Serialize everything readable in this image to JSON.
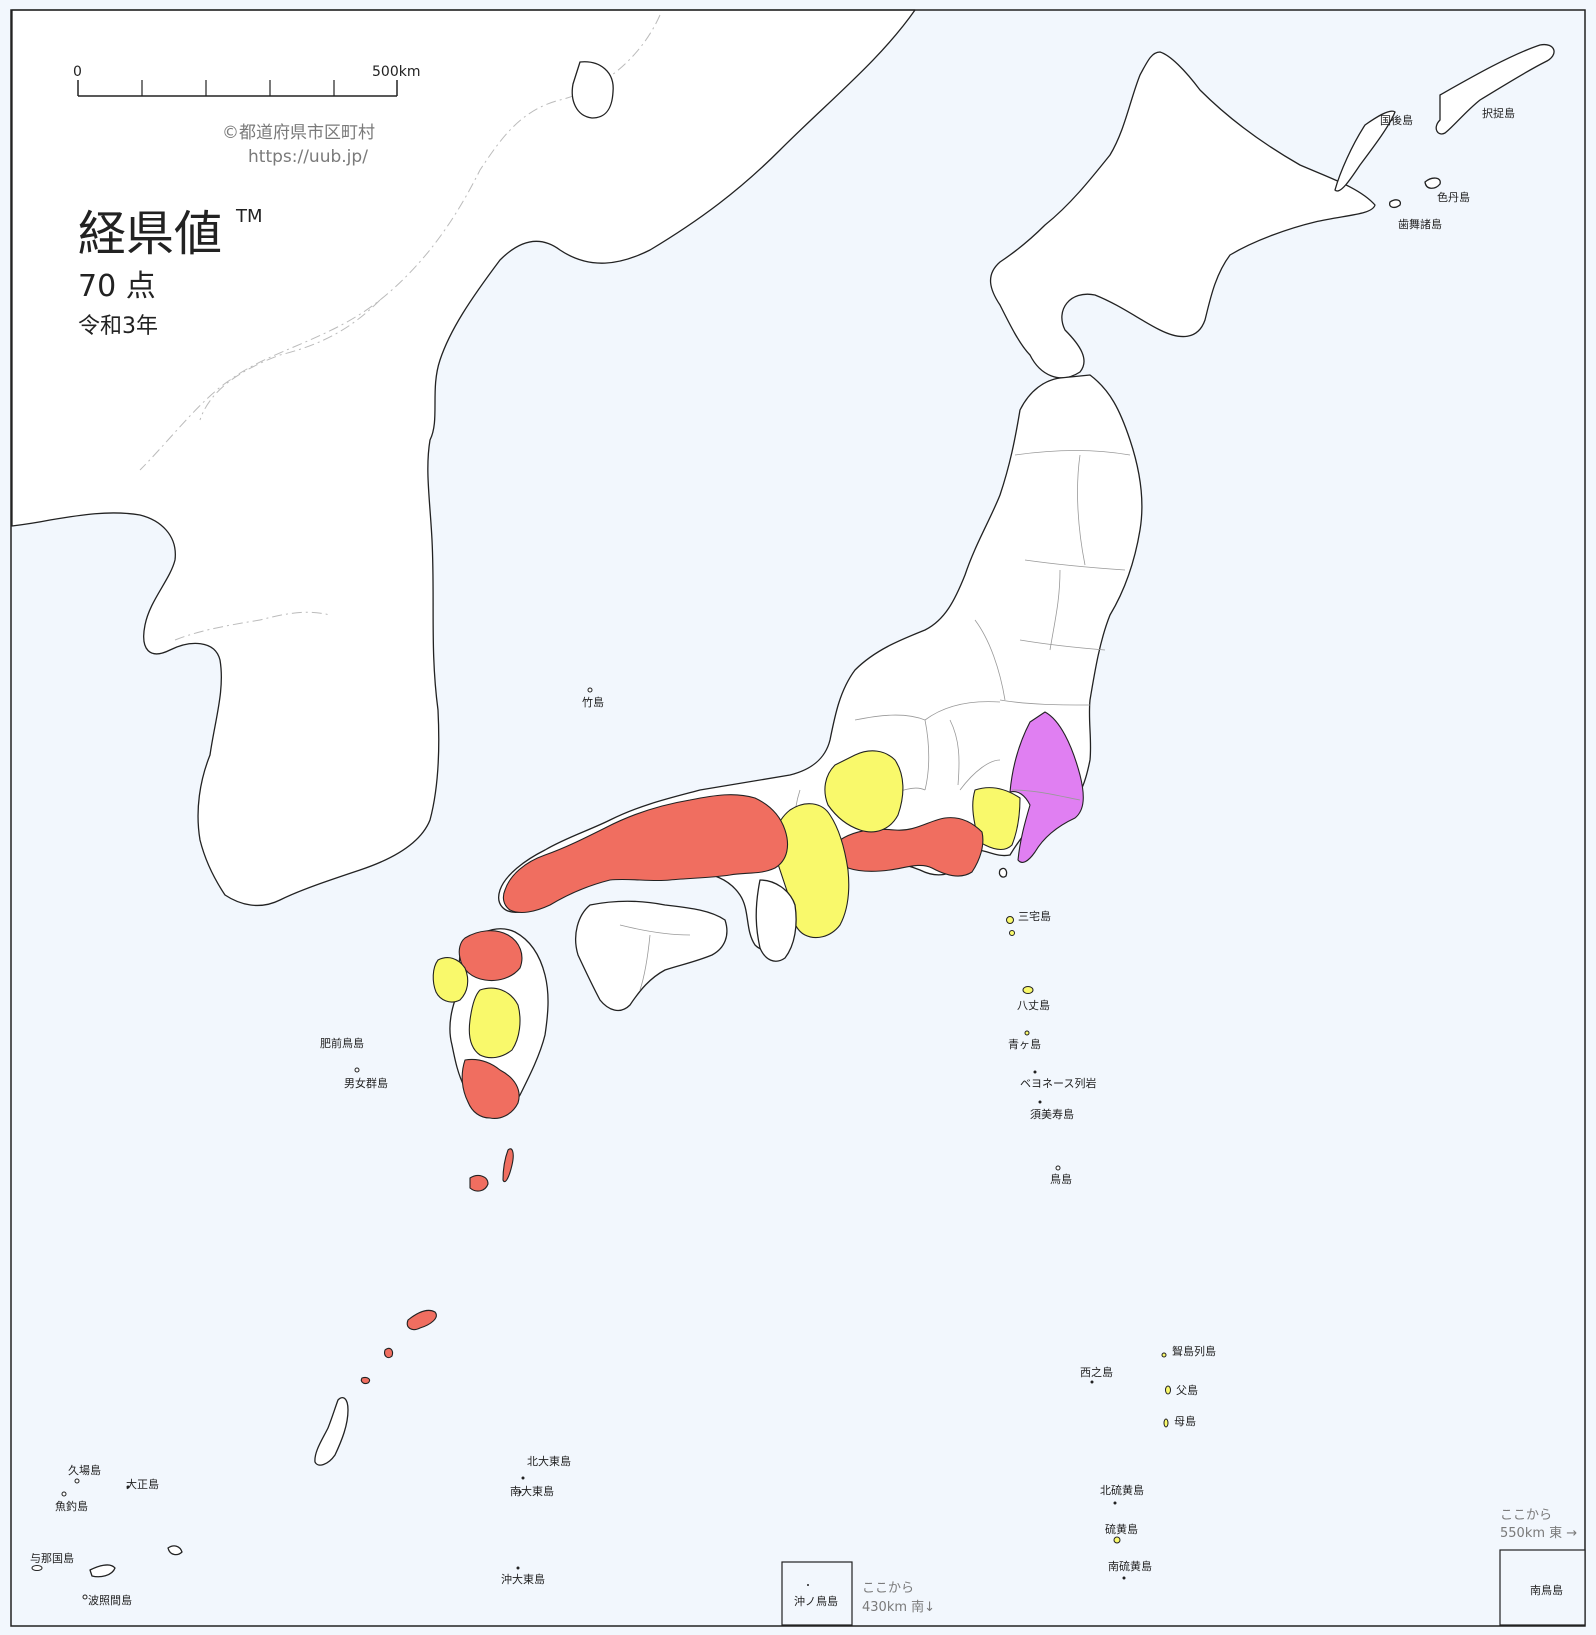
{
  "colors": {
    "sea": "#f2f7fd",
    "land": "#ffffff",
    "level_red": "#f06e60",
    "level_yellow": "#f9f96b",
    "level_magenta": "#e07ff2",
    "level_white": "#ffffff"
  },
  "scale_bar": {
    "start_label": "0",
    "end_label": "500km"
  },
  "credit": {
    "copyright": "©都道府県市区町村",
    "url": "https://uub.jp/"
  },
  "title": {
    "main": "経県値",
    "tm": "TM",
    "score": "70 点",
    "era": "令和3年"
  },
  "prefecture_levels": {
    "red": [
      "Yamaguchi",
      "Shimane",
      "Tottori",
      "Hiroshima",
      "Okayama",
      "Hyogo",
      "Kyoto",
      "Fukuoka",
      "Kagoshima",
      "Okinawa",
      "Aichi",
      "Shizuoka"
    ],
    "yellow": [
      "Saga",
      "Kumamoto",
      "Nagasaki",
      "Osaka",
      "Shiga",
      "Mie",
      "Nara",
      "Gifu",
      "Kanagawa",
      "Tokyo"
    ],
    "magenta": [
      "Ibaraki",
      "Chiba"
    ]
  },
  "island_labels": {
    "kunashiri": "国後島",
    "etorofu": "択捉島",
    "shikotan": "色丹島",
    "habomai": "歯舞諸島",
    "takeshima": "竹島",
    "miyake": "三宅島",
    "hachijo": "八丈島",
    "aogashima": "青ヶ島",
    "bayonnaise": "ベヨネース列岩",
    "sumisu": "須美寿島",
    "torishima": "鳥島",
    "hizen_torishima": "肥前鳥島",
    "danjo": "男女群島",
    "mukojima": "聟島列島",
    "nishinoshima": "西之島",
    "chichijima": "父島",
    "hahajima": "母島",
    "kitaiwo": "北硫黄島",
    "iwo": "硫黄島",
    "minamiiwo": "南硫黄島",
    "kitadaito": "北大東島",
    "minamidaito": "南大東島",
    "okidaito": "沖大東島",
    "kuba": "久場島",
    "taisho": "大正島",
    "uotsuri": "魚釣島",
    "yonaguni": "与那国島",
    "hateruma": "波照間島",
    "okinotori": "沖ノ鳥島",
    "minamitori": "南鳥島"
  },
  "insets": {
    "okinotori_note": [
      "ここから",
      "430km 南↓"
    ],
    "minamitori_note": [
      "ここから",
      "550km 東 →"
    ]
  }
}
